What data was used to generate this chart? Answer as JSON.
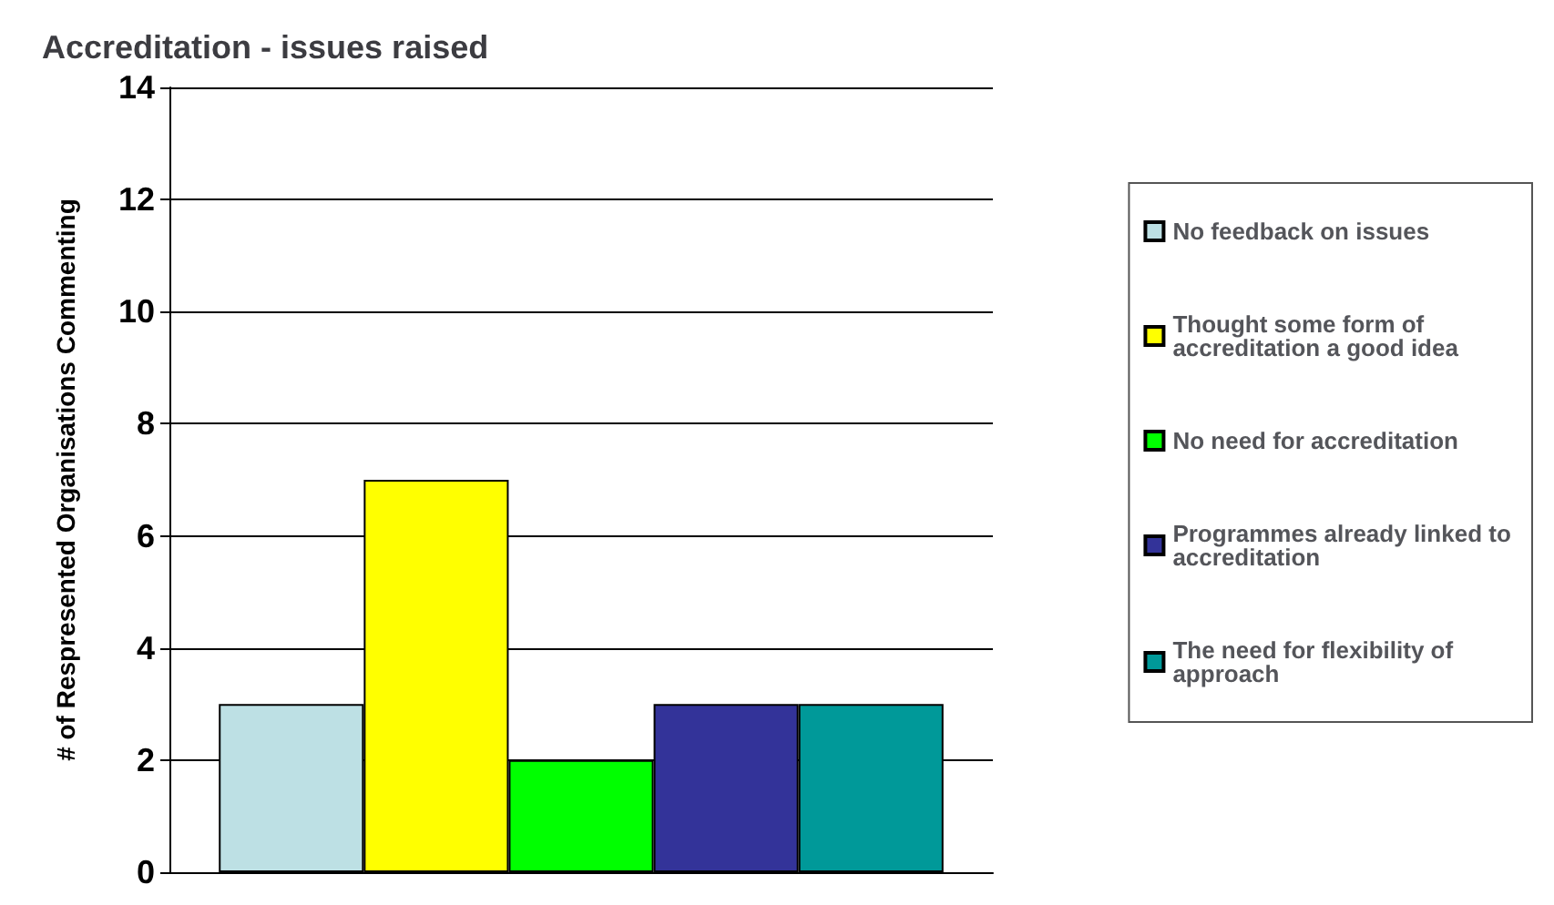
{
  "chart_data": {
    "type": "bar",
    "title": "Accreditation - issues raised",
    "ylabel": "# of Respresented Organisations Commenting",
    "categories": [
      null
    ],
    "series": [
      {
        "name": "No feedback on issues",
        "color": "#bde0e4",
        "values": [
          3
        ]
      },
      {
        "name": "Thought some form of accreditation a good idea",
        "color": "#ffff00",
        "values": [
          7
        ]
      },
      {
        "name": "No need for accreditation",
        "color": "#00ff00",
        "values": [
          2
        ]
      },
      {
        "name": "Programmes already linked to accreditation",
        "color": "#333399",
        "values": [
          3
        ]
      },
      {
        "name": "The need for flexibility of approach",
        "color": "#009999",
        "values": [
          3
        ]
      }
    ],
    "ylim": [
      0,
      14
    ],
    "yticks": [
      0,
      2,
      4,
      6,
      8,
      10,
      12,
      14
    ],
    "grid": "y",
    "legend": "right"
  }
}
